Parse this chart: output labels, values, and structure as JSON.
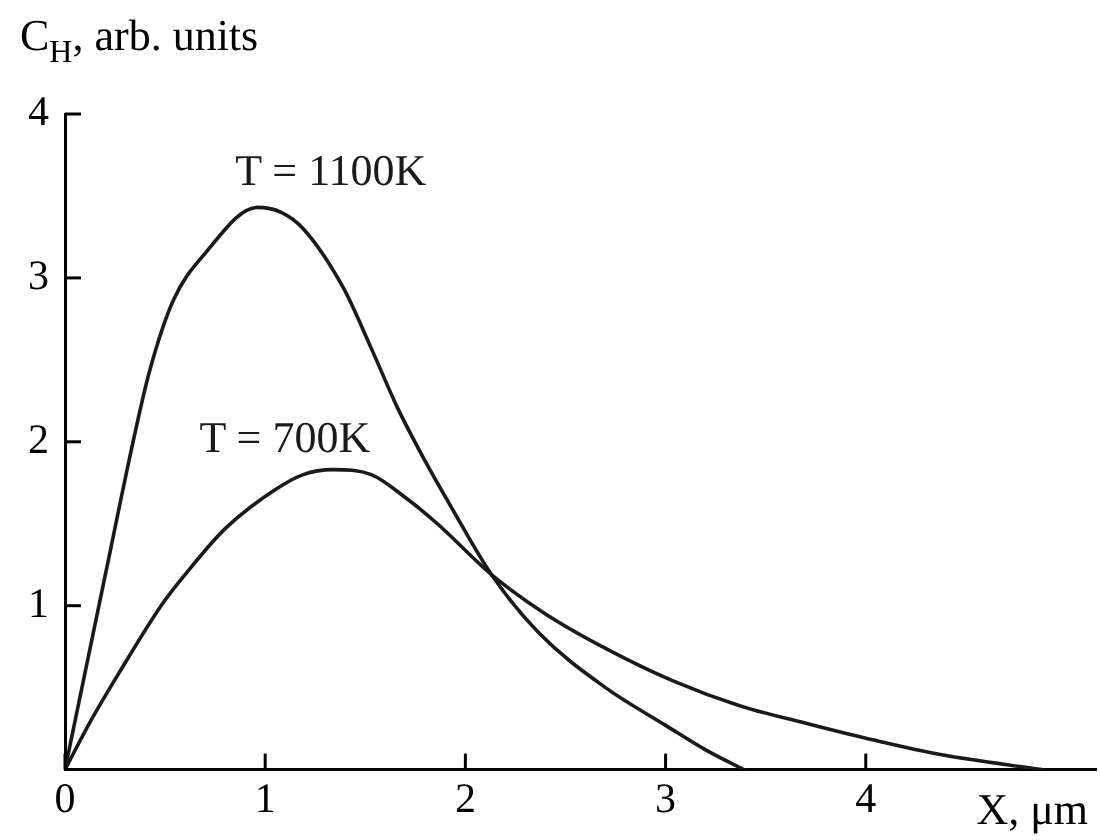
{
  "chart_data": {
    "type": "line",
    "xlabel": "X, μm",
    "ylabel": "C$_{H}$, arb. units",
    "xlim": [
      0,
      5.15
    ],
    "ylim": [
      0,
      4
    ],
    "xticks": [
      0,
      1,
      2,
      3,
      4
    ],
    "yticks": [
      1,
      2,
      3,
      4
    ],
    "grid": false,
    "legend": false,
    "marker": "none",
    "line_style": "solid",
    "series": [
      {
        "name": "T = 1100K",
        "color": "#1a1a1a",
        "x": [
          0,
          0.2,
          0.34,
          0.42,
          0.54,
          0.7,
          0.96,
          1.08,
          1.19,
          1.39,
          1.53,
          1.66,
          1.8,
          1.93,
          2.13,
          2.37,
          2.7,
          3.0,
          3.2,
          3.39
        ],
        "values": [
          0,
          1.18,
          2.0,
          2.42,
          2.86,
          3.15,
          3.43,
          3.4,
          3.3,
          2.94,
          2.57,
          2.21,
          1.88,
          1.6,
          1.19,
          0.83,
          0.5,
          0.27,
          0.12,
          0
        ]
      },
      {
        "name": "T = 700K",
        "color": "#1a1a1a",
        "x": [
          0,
          0.13,
          0.27,
          0.48,
          0.6,
          0.8,
          1.04,
          1.19,
          1.34,
          1.53,
          1.7,
          1.86,
          2.13,
          2.4,
          2.7,
          3.04,
          3.37,
          3.71,
          4.04,
          4.38,
          4.88
        ],
        "values": [
          0,
          0.3,
          0.59,
          1.0,
          1.19,
          1.47,
          1.7,
          1.8,
          1.83,
          1.8,
          1.66,
          1.5,
          1.19,
          0.95,
          0.74,
          0.54,
          0.39,
          0.28,
          0.18,
          0.09,
          0
        ]
      }
    ]
  }
}
